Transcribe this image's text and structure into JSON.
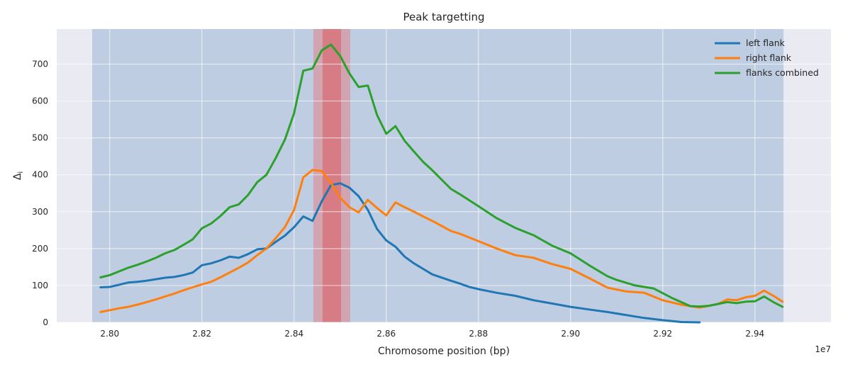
{
  "chart_data": {
    "type": "line",
    "title": "Peak targetting",
    "xlabel": "Chromosome position (bp)",
    "ylabel": "Δ",
    "ylabel_subscript": "i",
    "x_offset_label": "1e7",
    "x_scale": 10000000,
    "xlim": [
      27885000.0,
      29565000.0
    ],
    "ylim": [
      0,
      795
    ],
    "x_ticks": [
      28000000.0,
      28200000.0,
      28400000.0,
      28600000.0,
      28800000.0,
      29000000.0,
      29200000.0,
      29400000.0
    ],
    "x_tick_labels": [
      "2.80",
      "2.82",
      "2.84",
      "2.86",
      "2.88",
      "2.90",
      "2.92",
      "2.94"
    ],
    "y_ticks": [
      0,
      100,
      200,
      300,
      400,
      500,
      600,
      700
    ],
    "y_tick_labels": [
      "0",
      "100",
      "200",
      "300",
      "400",
      "500",
      "600",
      "700"
    ],
    "grid": true,
    "legend_position": "top-right",
    "background_color": "#eaeaf2",
    "shaded_regions": [
      {
        "x_start": 27962000.0,
        "x_end": 29462000.0,
        "color": "#6d98c4",
        "opacity": 0.35
      },
      {
        "x_start": 28442000.0,
        "x_end": 28522000.0,
        "color": "#e37c84",
        "opacity": 0.5
      },
      {
        "x_start": 28462000.0,
        "x_end": 28502000.0,
        "color": "#dc5a5e",
        "opacity": 0.55
      }
    ],
    "series": [
      {
        "name": "left flank",
        "color": "#1f77b4",
        "x": [
          27980000.0,
          28000000.0,
          28020000.0,
          28040000.0,
          28060000.0,
          28080000.0,
          28100000.0,
          28120000.0,
          28140000.0,
          28160000.0,
          28180000.0,
          28200000.0,
          28220000.0,
          28240000.0,
          28260000.0,
          28280000.0,
          28300000.0,
          28320000.0,
          28340000.0,
          28360000.0,
          28380000.0,
          28400000.0,
          28420000.0,
          28440000.0,
          28460000.0,
          28480000.0,
          28500000.0,
          28520000.0,
          28540000.0,
          28560000.0,
          28580000.0,
          28600000.0,
          28620000.0,
          28640000.0,
          28660000.0,
          28680000.0,
          28700000.0,
          28740000.0,
          28760000.0,
          28780000.0,
          28800000.0,
          28840000.0,
          28880000.0,
          28920000.0,
          28960000.0,
          29000000.0,
          29040000.0,
          29080000.0,
          29120000.0,
          29160000.0,
          29200000.0,
          29240000.0,
          29280000.0
        ],
        "y": [
          95,
          96,
          102,
          108,
          110,
          113,
          117,
          121,
          123,
          128,
          135,
          155,
          160,
          168,
          178,
          175,
          185,
          198,
          200,
          218,
          235,
          258,
          287,
          275,
          328,
          372,
          377,
          365,
          342,
          305,
          253,
          222,
          205,
          178,
          160,
          145,
          130,
          113,
          105,
          96,
          90,
          80,
          72,
          60,
          51,
          42,
          35,
          28,
          20,
          12,
          6,
          1,
          0
        ]
      },
      {
        "name": "right flank",
        "color": "#ff7f0e",
        "x": [
          27980000.0,
          28000000.0,
          28020000.0,
          28040000.0,
          28060000.0,
          28080000.0,
          28100000.0,
          28120000.0,
          28140000.0,
          28160000.0,
          28180000.0,
          28200000.0,
          28220000.0,
          28240000.0,
          28260000.0,
          28280000.0,
          28300000.0,
          28320000.0,
          28340000.0,
          28360000.0,
          28380000.0,
          28400000.0,
          28420000.0,
          28440000.0,
          28460000.0,
          28480000.0,
          28500000.0,
          28520000.0,
          28540000.0,
          28560000.0,
          28580000.0,
          28600000.0,
          28620000.0,
          28640000.0,
          28660000.0,
          28680000.0,
          28700000.0,
          28740000.0,
          28760000.0,
          28800000.0,
          28840000.0,
          28880000.0,
          28920000.0,
          28960000.0,
          29000000.0,
          29040000.0,
          29080000.0,
          29120000.0,
          29160000.0,
          29200000.0,
          29240000.0,
          29280000.0,
          29300000.0,
          29320000.0,
          29340000.0,
          29360000.0,
          29380000.0,
          29400000.0,
          29420000.0,
          29440000.0,
          29460000.0
        ],
        "y": [
          28,
          33,
          38,
          42,
          48,
          55,
          62,
          70,
          78,
          87,
          95,
          103,
          110,
          122,
          135,
          148,
          162,
          182,
          200,
          228,
          258,
          305,
          393,
          413,
          410,
          378,
          338,
          312,
          298,
          332,
          310,
          290,
          325,
          312,
          300,
          287,
          275,
          248,
          240,
          220,
          200,
          182,
          175,
          158,
          145,
          120,
          94,
          84,
          80,
          60,
          48,
          40,
          45,
          50,
          62,
          60,
          68,
          72,
          86,
          72,
          56
        ]
      },
      {
        "name": "flanks combined",
        "color": "#2ca02c",
        "x": [
          27980000.0,
          28000000.0,
          28020000.0,
          28040000.0,
          28060000.0,
          28080000.0,
          28100000.0,
          28120000.0,
          28140000.0,
          28160000.0,
          28180000.0,
          28200000.0,
          28220000.0,
          28240000.0,
          28260000.0,
          28280000.0,
          28300000.0,
          28320000.0,
          28340000.0,
          28360000.0,
          28380000.0,
          28400000.0,
          28420000.0,
          28440000.0,
          28460000.0,
          28480000.0,
          28500000.0,
          28520000.0,
          28540000.0,
          28560000.0,
          28580000.0,
          28600000.0,
          28620000.0,
          28640000.0,
          28660000.0,
          28680000.0,
          28700000.0,
          28740000.0,
          28760000.0,
          28800000.0,
          28840000.0,
          28880000.0,
          28920000.0,
          28960000.0,
          29000000.0,
          29040000.0,
          29080000.0,
          29100000.0,
          29140000.0,
          29180000.0,
          29220000.0,
          29260000.0,
          29280000.0,
          29300000.0,
          29320000.0,
          29340000.0,
          29360000.0,
          29380000.0,
          29400000.0,
          29420000.0,
          29440000.0,
          29460000.0
        ],
        "y": [
          122,
          128,
          138,
          148,
          156,
          165,
          175,
          187,
          196,
          210,
          225,
          255,
          268,
          288,
          312,
          320,
          345,
          380,
          400,
          445,
          495,
          567,
          682,
          688,
          737,
          753,
          722,
          675,
          638,
          642,
          562,
          511,
          532,
          492,
          463,
          435,
          412,
          362,
          347,
          315,
          282,
          256,
          236,
          208,
          187,
          155,
          125,
          115,
          100,
          92,
          66,
          44,
          43,
          45,
          50,
          55,
          52,
          56,
          57,
          70,
          55,
          42
        ]
      }
    ]
  }
}
